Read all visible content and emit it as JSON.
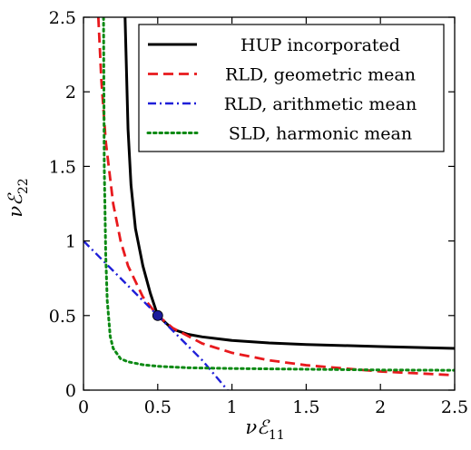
{
  "chart_data": {
    "type": "line",
    "xlabel_base": "ν",
    "xlabel_script": "ℰ",
    "xlabel_sub": "11",
    "ylabel_base": "ν",
    "ylabel_script": "ℰ",
    "ylabel_sub": "22",
    "xlim": [
      0,
      2.5
    ],
    "ylim": [
      0,
      2.5
    ],
    "xticks": [
      0,
      0.5,
      1,
      1.5,
      2,
      2.5
    ],
    "yticks": [
      0,
      0.5,
      1,
      1.5,
      2,
      2.5
    ],
    "xtick_labels": [
      "0",
      "0.5",
      "1",
      "1.5",
      "2",
      "2.5"
    ],
    "ytick_labels": [
      "0",
      "0.5",
      "1",
      "1.5",
      "2",
      "2.5"
    ],
    "grid": false,
    "legend_position": "top-right",
    "series": [
      {
        "name": "HUP incorporated",
        "color": "#000000",
        "style": "solid",
        "x": [
          0.28,
          0.3,
          0.32,
          0.35,
          0.4,
          0.45,
          0.5,
          0.6,
          0.7,
          0.8,
          1.0,
          1.25,
          1.5,
          2.0,
          2.5
        ],
        "y": [
          2.5,
          1.75,
          1.375,
          1.083,
          0.833,
          0.65,
          0.5,
          0.409,
          0.375,
          0.357,
          0.333,
          0.316,
          0.306,
          0.292,
          0.28
        ]
      },
      {
        "name": "RLD, geometric mean",
        "color": "#e8191d",
        "style": "dashed",
        "x": [
          0.1,
          0.12,
          0.15,
          0.2,
          0.25,
          0.3,
          0.4,
          0.5,
          0.6,
          0.8,
          1.0,
          1.25,
          1.5,
          2.0,
          2.5
        ],
        "y": [
          2.5,
          2.083,
          1.667,
          1.25,
          1.0,
          0.833,
          0.625,
          0.5,
          0.417,
          0.3125,
          0.25,
          0.2,
          0.167,
          0.125,
          0.1
        ]
      },
      {
        "name": "RLD, arithmetic mean",
        "color": "#1f1fd8",
        "style": "dashdot",
        "x": [
          0,
          0.2,
          0.4,
          0.5,
          0.6,
          0.8,
          0.97
        ],
        "y": [
          1.0,
          0.8,
          0.6,
          0.5,
          0.4,
          0.2,
          0.0
        ]
      },
      {
        "name": "SLD, harmonic mean",
        "color": "#0d8a14",
        "style": "dotted",
        "x": [
          0.135,
          0.14,
          0.15,
          0.16,
          0.18,
          0.2,
          0.25,
          0.3,
          0.4,
          0.5,
          0.7,
          1.0,
          1.5,
          2.0,
          2.5
        ],
        "y": [
          2.5,
          1.5,
          0.9,
          0.6,
          0.36,
          0.28,
          0.21,
          0.19,
          0.17,
          0.16,
          0.15,
          0.145,
          0.14,
          0.135,
          0.133
        ]
      }
    ],
    "marker": {
      "x": 0.5,
      "y": 0.5,
      "color": "#1c1c9c"
    }
  }
}
